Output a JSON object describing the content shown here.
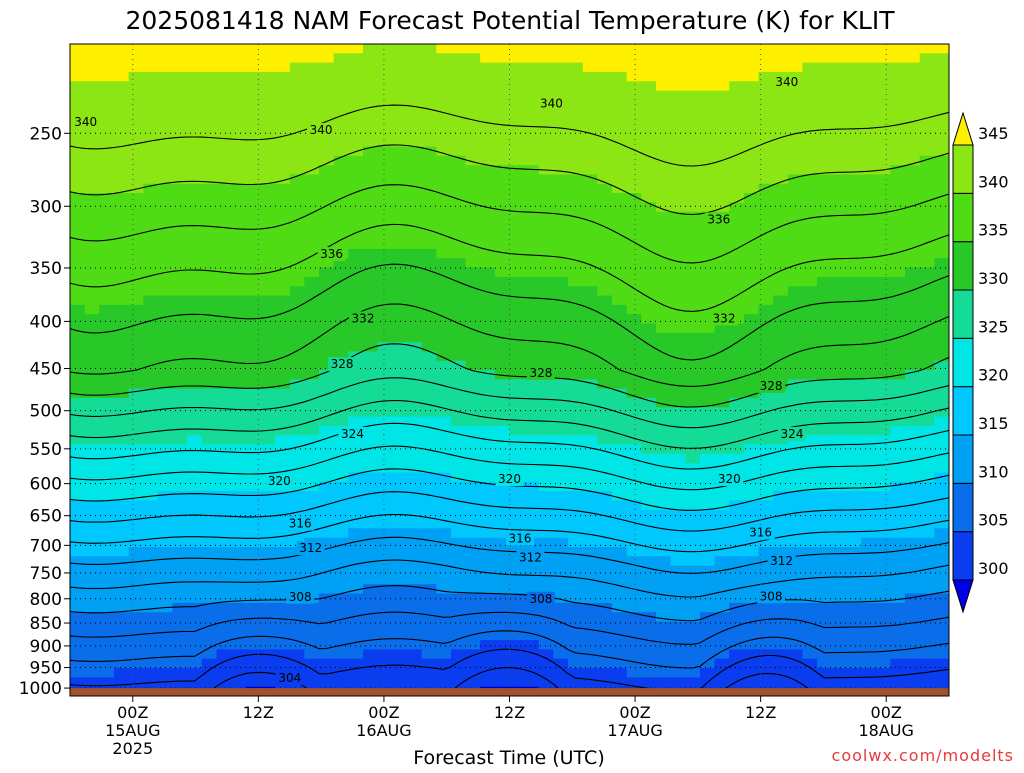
{
  "chart_data": {
    "type": "heatmap",
    "title": "2025081418 NAM Forecast Potential Temperature (K) for KLIT",
    "xlabel": "Forecast Time (UTC)",
    "ylabel": "",
    "x_ticks": [
      {
        "label": "00Z",
        "sub1": "15AUG",
        "sub2": "2025",
        "hour": 6
      },
      {
        "label": "12Z",
        "sub1": "",
        "sub2": "",
        "hour": 18
      },
      {
        "label": "00Z",
        "sub1": "16AUG",
        "sub2": "",
        "hour": 30
      },
      {
        "label": "12Z",
        "sub1": "",
        "sub2": "",
        "hour": 42
      },
      {
        "label": "00Z",
        "sub1": "17AUG",
        "sub2": "",
        "hour": 54
      },
      {
        "label": "12Z",
        "sub1": "",
        "sub2": "",
        "hour": 66
      },
      {
        "label": "00Z",
        "sub1": "18AUG",
        "sub2": "",
        "hour": 78
      }
    ],
    "x_range_hours": [
      0,
      84
    ],
    "y_levels_hPa": [
      1000,
      950,
      900,
      850,
      800,
      750,
      700,
      650,
      600,
      550,
      500,
      450,
      400,
      350,
      300,
      250
    ],
    "y_range_hPa": [
      1020,
      200
    ],
    "surface_pressure_hPa": 1000,
    "surface_color": "#a0522d",
    "colorbar": {
      "levels": [
        300,
        305,
        310,
        315,
        320,
        325,
        330,
        335,
        340,
        345
      ],
      "colors": [
        "#0000e6",
        "#0a3cf0",
        "#0a6eeb",
        "#00a0f5",
        "#00c8ff",
        "#00e6e6",
        "#14dc96",
        "#28c828",
        "#50dc14",
        "#8ce614",
        "#c8f028",
        "#fff000"
      ]
    },
    "contour_levels": [
      302,
      304,
      306,
      308,
      310,
      312,
      314,
      316,
      318,
      320,
      322,
      324,
      326,
      328,
      330,
      332,
      334,
      336,
      338,
      340,
      342
    ],
    "contour_labels": [
      {
        "value": "340",
        "hour": 1.5,
        "p": 243
      },
      {
        "value": "340",
        "hour": 24,
        "p": 248
      },
      {
        "value": "340",
        "hour": 46,
        "p": 232
      },
      {
        "value": "340",
        "hour": 68.5,
        "p": 220
      },
      {
        "value": "336",
        "hour": 25,
        "p": 338
      },
      {
        "value": "336",
        "hour": 62,
        "p": 310
      },
      {
        "value": "332",
        "hour": 28,
        "p": 397
      },
      {
        "value": "332",
        "hour": 62.5,
        "p": 397
      },
      {
        "value": "328",
        "hour": 26,
        "p": 445
      },
      {
        "value": "328",
        "hour": 45,
        "p": 455
      },
      {
        "value": "328",
        "hour": 67,
        "p": 470
      },
      {
        "value": "324",
        "hour": 27,
        "p": 530
      },
      {
        "value": "324",
        "hour": 69,
        "p": 530
      },
      {
        "value": "320",
        "hour": 20,
        "p": 596
      },
      {
        "value": "320",
        "hour": 42,
        "p": 593
      },
      {
        "value": "320",
        "hour": 63,
        "p": 593
      },
      {
        "value": "316",
        "hour": 22,
        "p": 663
      },
      {
        "value": "316",
        "hour": 43,
        "p": 688
      },
      {
        "value": "316",
        "hour": 66,
        "p": 678
      },
      {
        "value": "312",
        "hour": 23,
        "p": 705
      },
      {
        "value": "312",
        "hour": 44,
        "p": 722
      },
      {
        "value": "312",
        "hour": 68,
        "p": 728
      },
      {
        "value": "308",
        "hour": 22,
        "p": 796
      },
      {
        "value": "308",
        "hour": 45,
        "p": 800
      },
      {
        "value": "308",
        "hour": 67,
        "p": 795
      },
      {
        "value": "304",
        "hour": 21,
        "p": 975
      }
    ]
  },
  "credit": "coolwx.com/modelts"
}
